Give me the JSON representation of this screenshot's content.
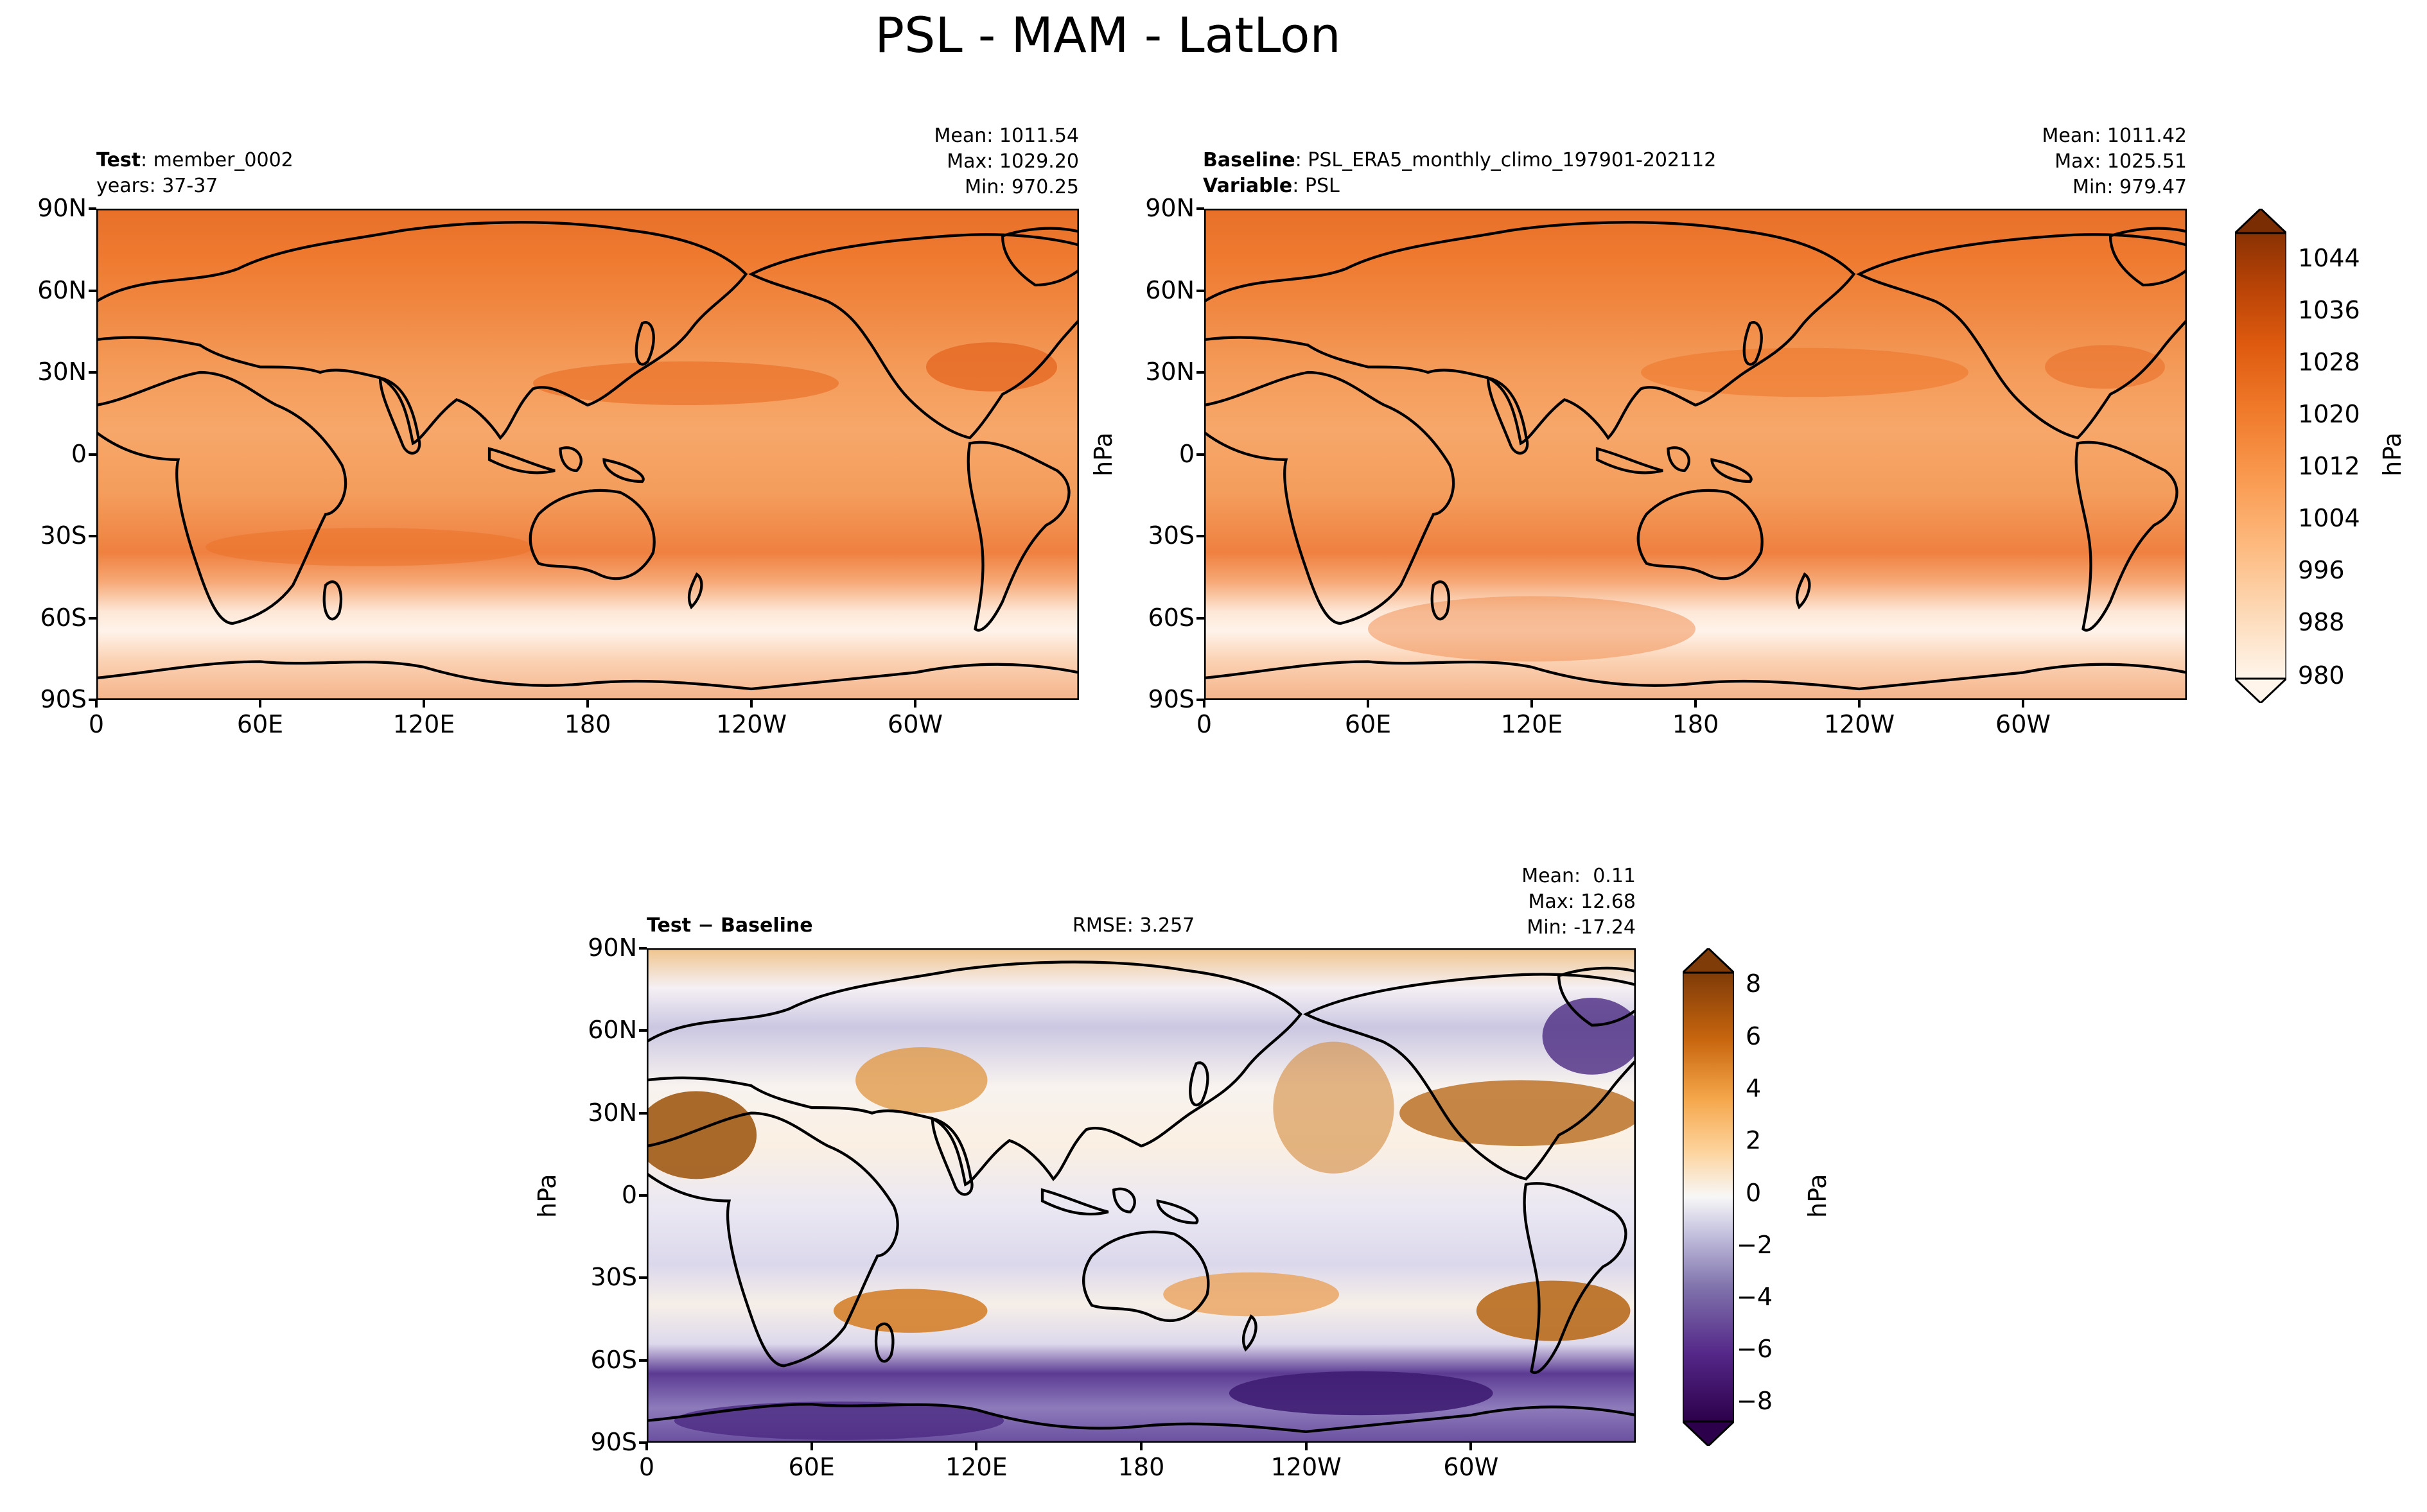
{
  "figure_title": "PSL - MAM - LatLon",
  "panels": {
    "test": {
      "label_bold": "Test",
      "label_rest": ": member_0002",
      "line2": "years: 37-37",
      "stats": {
        "mean": "Mean: 1011.54",
        "max": "Max: 1029.20",
        "min": "Min: 970.25"
      }
    },
    "baseline": {
      "label_bold": "Baseline",
      "label_rest": ": PSL_ERA5_monthly_climo_197901-202112",
      "line2_bold": "Variable",
      "line2_rest": ": PSL",
      "ylabel": "hPa",
      "stats": {
        "mean": "Mean: 1011.42",
        "max": "Max: 1025.51",
        "min": "Min: 979.47"
      }
    },
    "diff": {
      "label": "Test − Baseline",
      "rmse": "RMSE: 3.257",
      "ylabel": "hPa",
      "stats": {
        "mean": "Mean:  0.11",
        "max": "Max: 12.68",
        "min": "Min: -17.24"
      }
    }
  },
  "axes": {
    "lat_ticks": [
      "90N",
      "60N",
      "30N",
      "0",
      "30S",
      "60S",
      "90S"
    ],
    "lon_ticks": [
      "0",
      "60E",
      "120E",
      "180",
      "120W",
      "60W"
    ]
  },
  "colorbar_main": {
    "label": "hPa",
    "ticks": [
      "1044",
      "1036",
      "1028",
      "1020",
      "1012",
      "1004",
      "996",
      "988",
      "980"
    ]
  },
  "colorbar_diff": {
    "label": "hPa",
    "ticks": [
      "8",
      "6",
      "4",
      "2",
      "0",
      "−2",
      "−4",
      "−6",
      "−8"
    ]
  },
  "chart_data": [
    {
      "type": "heatmap",
      "title": "Test: member_0002",
      "variable": "PSL",
      "units": "hPa",
      "xlabel": "",
      "ylabel": "",
      "xlim": [
        0,
        360
      ],
      "ylim": [
        -90,
        90
      ],
      "x_ticks": [
        "0",
        "60E",
        "120E",
        "180",
        "120W",
        "60W"
      ],
      "y_ticks": [
        "90N",
        "60N",
        "30N",
        "0",
        "30S",
        "60S",
        "90S"
      ],
      "mean": 1011.54,
      "max": 1029.2,
      "min": 970.25,
      "colorbar": {
        "min": 980,
        "max": 1048,
        "ticks": [
          980,
          988,
          996,
          1004,
          1012,
          1020,
          1028,
          1036,
          1044
        ]
      }
    },
    {
      "type": "heatmap",
      "title": "Baseline: PSL_ERA5_monthly_climo_197901-202112",
      "variable": "PSL",
      "units": "hPa",
      "xlabel": "",
      "ylabel": "hPa",
      "xlim": [
        0,
        360
      ],
      "ylim": [
        -90,
        90
      ],
      "mean": 1011.42,
      "max": 1025.51,
      "min": 979.47
    },
    {
      "type": "heatmap",
      "title": "Test − Baseline",
      "units": "hPa",
      "xlabel": "",
      "ylabel": "hPa",
      "xlim": [
        0,
        360
      ],
      "ylim": [
        -90,
        90
      ],
      "rmse": 3.257,
      "mean": 0.11,
      "max": 12.68,
      "min": -17.24,
      "colorbar": {
        "min": -9,
        "max": 9,
        "ticks": [
          -8,
          -6,
          -4,
          -2,
          0,
          2,
          4,
          6,
          8
        ]
      }
    }
  ]
}
